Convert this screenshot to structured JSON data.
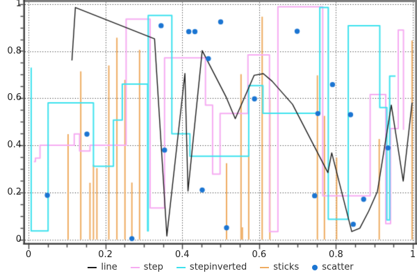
{
  "chart_data": {
    "type": "mixed",
    "title": "",
    "xlabel": "",
    "ylabel": "",
    "x_axis": {
      "range": [
        0,
        1
      ],
      "tick_values": [
        0,
        0.2,
        0.4,
        0.6,
        0.8,
        1
      ],
      "tick_labels": [
        "0",
        "0.2",
        "0.4",
        "0.6",
        "0.8",
        "1"
      ],
      "minor_tick_step": 0.05
    },
    "y_axis": {
      "range": [
        0,
        1
      ],
      "tick_values": [
        0,
        0.2,
        0.4,
        0.6,
        0.8,
        1
      ],
      "tick_labels": [
        "0",
        "0.2",
        "0.4",
        "0.6",
        "0.8",
        "1"
      ],
      "minor_tick_step": 0.05
    },
    "grid": {
      "on": true,
      "style": "dotted",
      "x_lines": [
        0,
        0.2,
        0.4,
        0.6,
        0.8,
        1
      ],
      "y_lines": [
        0,
        0.2,
        0.4,
        0.6,
        0.8,
        1
      ]
    },
    "legend": {
      "position": "bottom"
    },
    "series": [
      {
        "name": "line",
        "type": "line",
        "color": "#1c1c1c",
        "line_width": 1.4,
        "points": [
          [
            0.113,
            0.76
          ],
          [
            0.122,
            0.985
          ],
          [
            0.328,
            0.852
          ],
          [
            0.36,
            0.015
          ],
          [
            0.407,
            0.705
          ],
          [
            0.415,
            0.206
          ],
          [
            0.452,
            0.802
          ],
          [
            0.5145,
            0.604
          ],
          [
            0.538,
            0.513
          ],
          [
            0.587,
            0.697
          ],
          [
            0.611,
            0.704
          ],
          [
            0.634,
            0.672
          ],
          [
            0.687,
            0.574
          ],
          [
            0.779,
            0.284
          ],
          [
            0.789,
            0.368
          ],
          [
            0.841,
            0.034
          ],
          [
            0.862,
            0.048
          ],
          [
            0.885,
            0.12
          ],
          [
            0.908,
            0.205
          ],
          [
            0.944,
            0.571
          ],
          [
            0.975,
            0.248
          ],
          [
            0.998,
            0.581
          ]
        ]
      },
      {
        "name": "step",
        "type": "step-post",
        "color": "#f6acf2",
        "line_width": 2,
        "points": [
          [
            0.014,
            0.331
          ],
          [
            0.018,
            0.346
          ],
          [
            0.03,
            0.4
          ],
          [
            0.119,
            0.448
          ],
          [
            0.133,
            0.376
          ],
          [
            0.16,
            0.4
          ],
          [
            0.254,
            0.936
          ],
          [
            0.3165,
            0.134
          ],
          [
            0.354,
            0.771
          ],
          [
            0.4605,
            0.571
          ],
          [
            0.479,
            0.278
          ],
          [
            0.4985,
            0.535
          ],
          [
            0.571,
            0.784
          ],
          [
            0.627,
            0.034
          ],
          [
            0.649,
            0.988
          ],
          [
            0.7655,
            0.186
          ],
          [
            0.889,
            0.616
          ],
          [
            0.9295,
            0.068
          ],
          [
            0.9421,
            0.471
          ],
          [
            0.962,
            0.889
          ],
          [
            0.9757,
            0.466
          ]
        ]
      },
      {
        "name": "stepinverted",
        "type": "step-pre",
        "color": "#3fe2ee",
        "line_width": 2,
        "points": [
          [
            0.007,
            0.73
          ],
          [
            0.051,
            0.037
          ],
          [
            0.169,
            0.58
          ],
          [
            0.221,
            0.311
          ],
          [
            0.244,
            0.507
          ],
          [
            0.31,
            0.66
          ],
          [
            0.3115,
            0.037
          ],
          [
            0.373,
            0.951
          ],
          [
            0.42,
            0.449
          ],
          [
            0.573,
            0.354
          ],
          [
            0.61,
            0.653
          ],
          [
            0.758,
            0.536
          ],
          [
            0.78,
            0.985
          ],
          [
            0.832,
            0.086
          ],
          [
            0.914,
            0.908
          ],
          [
            0.9325,
            0.56
          ],
          [
            0.9397,
            0.083
          ],
          [
            0.955,
            0.694
          ]
        ]
      },
      {
        "name": "sticks",
        "type": "stick",
        "color": "#efad63",
        "line_width": 2,
        "points": [
          [
            0.103,
            0.4475
          ],
          [
            0.136,
            0.714
          ],
          [
            0.16,
            0.241
          ],
          [
            0.169,
            0.317
          ],
          [
            0.178,
            0.303
          ],
          [
            0.209,
            0.739
          ],
          [
            0.23,
            0.857
          ],
          [
            0.251,
            0.678
          ],
          [
            0.269,
            0.242
          ],
          [
            0.289,
            0.805
          ],
          [
            0.5153,
            0.324
          ],
          [
            0.553,
            0.702
          ],
          [
            0.5565,
            0.052
          ],
          [
            0.573,
            0.383
          ],
          [
            0.608,
            0.946
          ],
          [
            0.628,
            0.594
          ],
          [
            0.7517,
            0.697
          ],
          [
            0.77,
            0.525
          ],
          [
            0.8017,
            0.348
          ],
          [
            0.9126,
            0.427
          ],
          [
            0.998,
            0.845
          ]
        ]
      },
      {
        "name": "scatter",
        "type": "scatter",
        "color": "#1b75d2",
        "marker_radius": 3.7,
        "points": [
          [
            0.049,
            0.188
          ],
          [
            0.152,
            0.4475
          ],
          [
            0.269,
            0.004
          ],
          [
            0.345,
            0.908
          ],
          [
            0.354,
            0.38
          ],
          [
            0.417,
            0.8825
          ],
          [
            0.433,
            0.8825
          ],
          [
            0.452,
            0.2105
          ],
          [
            0.468,
            0.768
          ],
          [
            0.5,
            0.924
          ],
          [
            0.5153,
            0.05
          ],
          [
            0.588,
            0.597
          ],
          [
            0.699,
            0.884
          ],
          [
            0.7445,
            0.186
          ],
          [
            0.753,
            0.535
          ],
          [
            0.791,
            0.658
          ],
          [
            0.838,
            0.53
          ],
          [
            0.845,
            0.065
          ],
          [
            0.872,
            0.171
          ],
          [
            0.9355,
            0.389
          ]
        ]
      }
    ]
  },
  "colors": {
    "background": "#ffffff",
    "axis": "#3e3e3e",
    "border": "#7c7c7c",
    "grid": "#161616",
    "tick_label": "#1c1c1c",
    "legend_text": "#303030"
  }
}
